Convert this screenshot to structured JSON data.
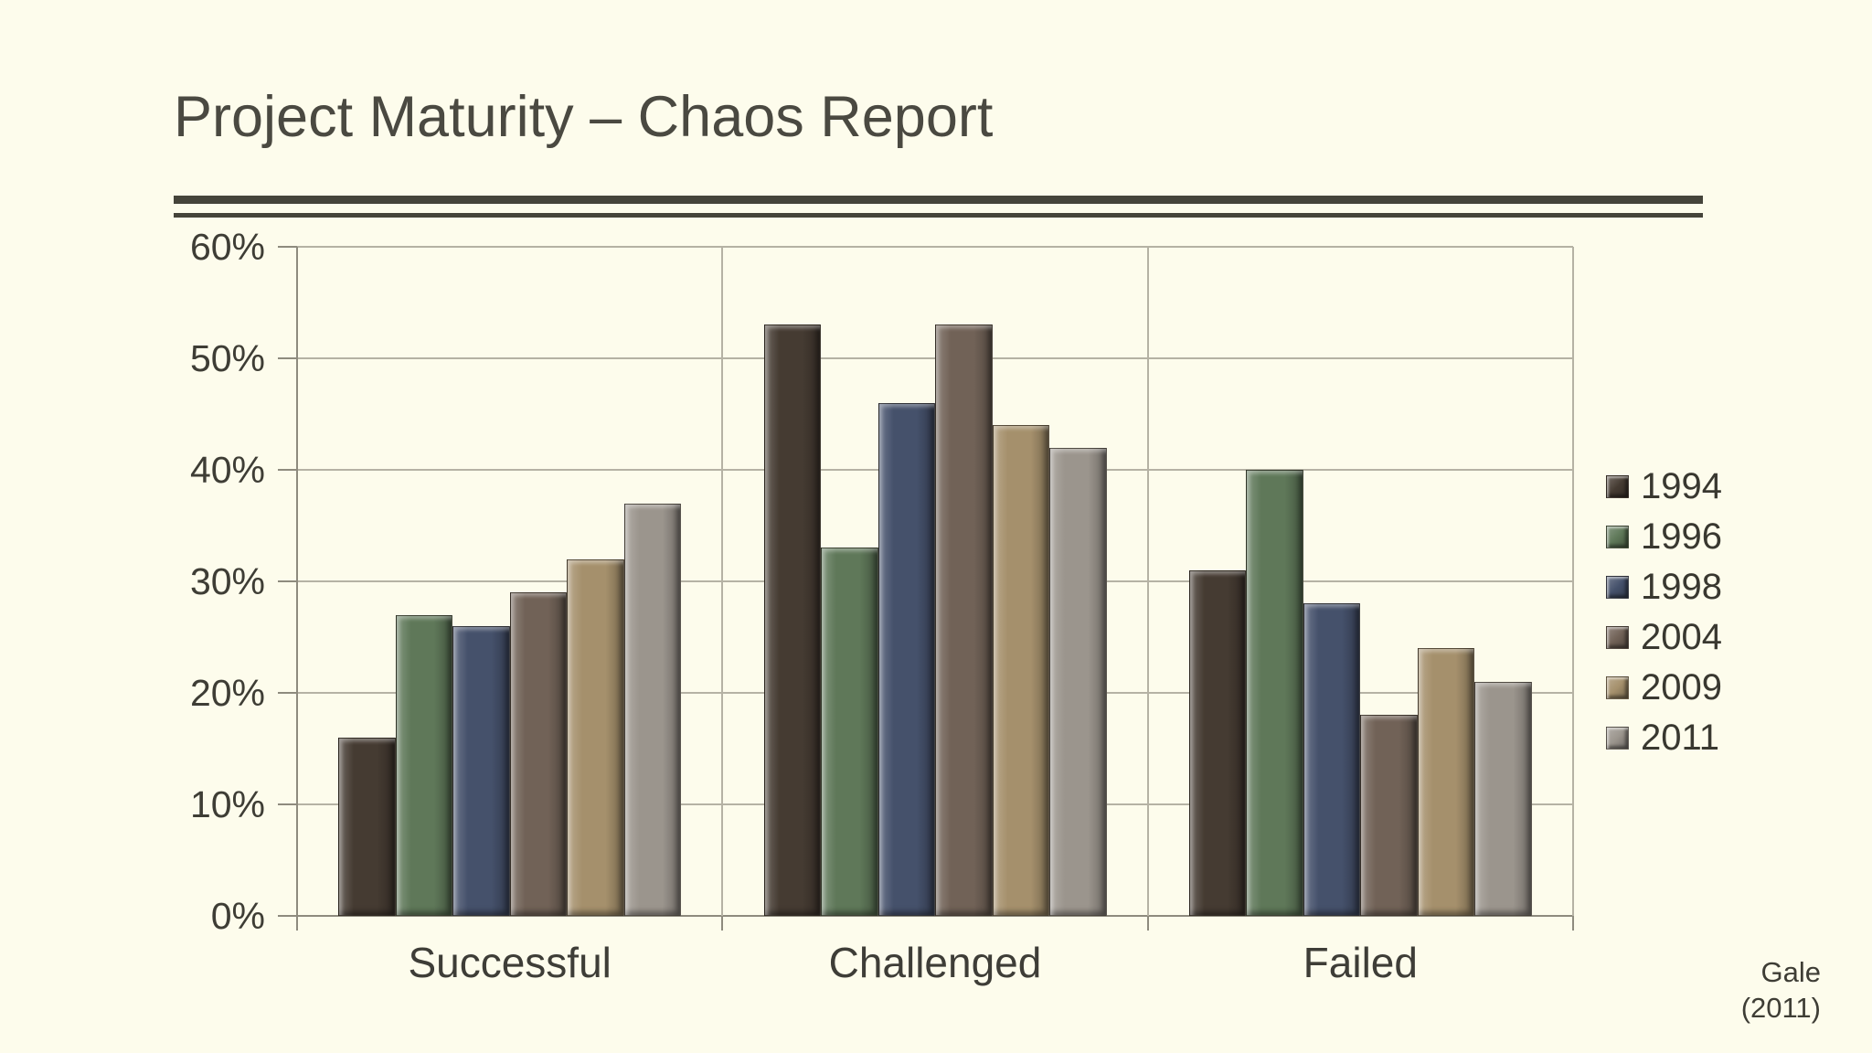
{
  "slide": {
    "title": "Project Maturity – Chaos Report",
    "source_note": {
      "line1": "Gale",
      "line2": "(2011)"
    }
  },
  "chart_data": {
    "type": "bar",
    "title": "Project Maturity – Chaos Report",
    "categories": [
      "Successful",
      "Challenged",
      "Failed"
    ],
    "series": [
      {
        "name": "1994",
        "color": "#453b32",
        "values": [
          16,
          53,
          31
        ]
      },
      {
        "name": "1996",
        "color": "#5f7859",
        "values": [
          27,
          33,
          40
        ]
      },
      {
        "name": "1998",
        "color": "#45516b",
        "values": [
          26,
          46,
          28
        ]
      },
      {
        "name": "2004",
        "color": "#716257",
        "values": [
          29,
          53,
          18
        ]
      },
      {
        "name": "2009",
        "color": "#a5906c",
        "values": [
          32,
          44,
          24
        ]
      },
      {
        "name": "2011",
        "color": "#9b958d",
        "values": [
          37,
          42,
          21
        ]
      }
    ],
    "ylim": [
      0,
      60
    ],
    "ytick_step": 10,
    "ytick_labels": [
      "0%",
      "10%",
      "20%",
      "30%",
      "40%",
      "50%",
      "60%"
    ],
    "xlabel": "",
    "ylabel": "",
    "grid": true,
    "legend_position": "right"
  },
  "colors": {
    "background": "#fdfcec",
    "title_text": "#4a4941",
    "rule": "#45443a",
    "gridline": "#b5b2a4",
    "axis": "#8e8b7e",
    "label_text": "#3e3d35"
  }
}
